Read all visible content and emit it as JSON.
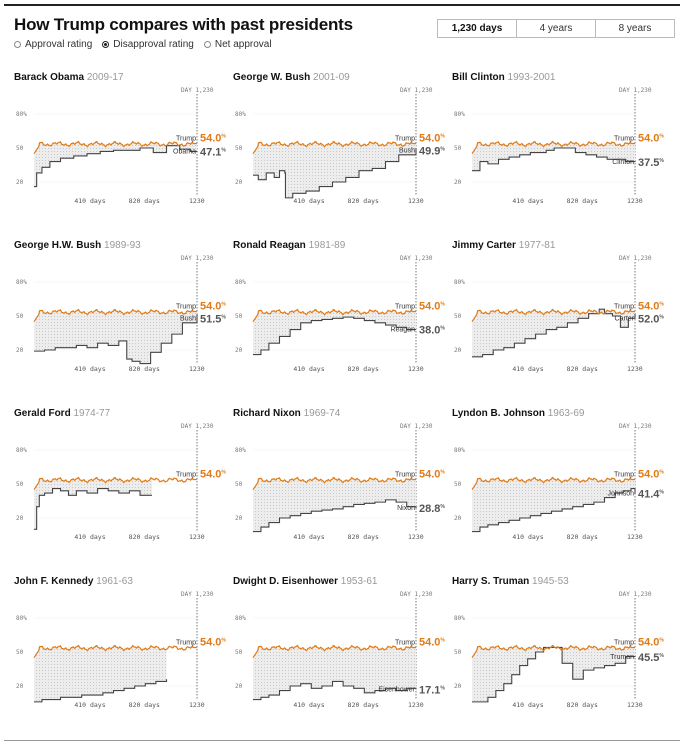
{
  "header": {
    "title": "How Trump compares with past presidents",
    "radio_options": [
      "Approval rating",
      "Disapproval rating",
      "Net approval"
    ],
    "radio_selected": 1,
    "tabs": [
      "1,230 days",
      "4 years",
      "8 years"
    ],
    "tab_active": 0
  },
  "colors": {
    "trump": "#e07b17",
    "president": "#444444",
    "fill": "#e8e8e8"
  },
  "chart_data": {
    "type": "line",
    "title": "How Trump compares with past presidents",
    "metric": "Disapproval rating",
    "x_range": [
      0,
      1230
    ],
    "y_range": [
      10,
      90
    ],
    "x_ticks": [
      410,
      820,
      1230
    ],
    "x_tick_labels": [
      "410",
      "820",
      "1230"
    ],
    "x_unit_label": "days",
    "y_ticks": [
      80,
      50,
      20
    ],
    "y_tick_labels": [
      "80",
      "50",
      "20"
    ],
    "y_top_suffix": "%",
    "marker": {
      "day": 1230,
      "label": "DAY 1,230"
    },
    "trump": {
      "name": "Trump",
      "value": "54.0",
      "unit": "%",
      "final": 54.0
    },
    "presidents": [
      {
        "name": "Barack Obama",
        "years": "2009-17",
        "label": "Obama",
        "value": "47.1",
        "x": [
          0,
          20,
          60,
          120,
          200,
          300,
          400,
          500,
          600,
          700,
          800,
          900,
          1000,
          1100,
          1180,
          1230
        ],
        "y": [
          16,
          28,
          33,
          38,
          41,
          43,
          45,
          47,
          48,
          48,
          50,
          46,
          52,
          49,
          47,
          47.1
        ]
      },
      {
        "name": "George W. Bush",
        "years": "2001-09",
        "label": "Bush",
        "value": "49.9",
        "x": [
          0,
          40,
          100,
          160,
          200,
          240,
          245,
          300,
          400,
          500,
          600,
          700,
          800,
          900,
          1000,
          1100,
          1230
        ],
        "y": [
          26,
          22,
          28,
          24,
          30,
          28,
          6,
          10,
          12,
          16,
          20,
          24,
          30,
          32,
          38,
          44,
          49.9
        ]
      },
      {
        "name": "Bill Clinton",
        "years": "1993-2001",
        "label": "Clinton",
        "value": "37.5",
        "x": [
          0,
          60,
          120,
          200,
          280,
          360,
          440,
          520,
          560,
          620,
          700,
          780,
          860,
          940,
          1020,
          1100,
          1160,
          1230
        ],
        "y": [
          30,
          38,
          36,
          40,
          42,
          44,
          46,
          46,
          48,
          50,
          50,
          46,
          44,
          42,
          40,
          40,
          38,
          37.5
        ]
      },
      {
        "name": "George H.W. Bush",
        "years": "1989-93",
        "label": "Bush",
        "value": "51.5",
        "x": [
          0,
          80,
          160,
          240,
          320,
          400,
          480,
          560,
          640,
          700,
          740,
          800,
          880,
          960,
          1040,
          1120,
          1230
        ],
        "y": [
          19,
          20,
          22,
          22,
          24,
          22,
          26,
          24,
          28,
          12,
          10,
          8,
          18,
          26,
          34,
          44,
          51.5
        ]
      },
      {
        "name": "Ronald Reagan",
        "years": "1981-89",
        "label": "Reagan",
        "value": "38.0",
        "x": [
          0,
          60,
          120,
          200,
          280,
          360,
          440,
          520,
          600,
          680,
          760,
          840,
          920,
          1000,
          1080,
          1160,
          1230
        ],
        "y": [
          16,
          20,
          26,
          32,
          38,
          44,
          46,
          47,
          48,
          49,
          48,
          46,
          44,
          42,
          40,
          38,
          38
        ]
      },
      {
        "name": "Jimmy Carter",
        "years": "1977-81",
        "label": "Carter",
        "value": "52.0",
        "x": [
          0,
          80,
          160,
          240,
          320,
          400,
          480,
          560,
          640,
          720,
          800,
          880,
          960,
          1000,
          1060,
          1120,
          1180,
          1230
        ],
        "y": [
          14,
          16,
          20,
          22,
          26,
          30,
          34,
          38,
          40,
          44,
          48,
          52,
          56,
          52,
          50,
          40,
          48,
          52
        ]
      },
      {
        "name": "Gerald Ford",
        "years": "1974-77",
        "label": "",
        "value": "",
        "x": [
          0,
          20,
          40,
          80,
          140,
          200,
          260,
          320,
          400,
          480,
          560,
          640,
          720,
          800,
          860,
          890
        ],
        "y": [
          10,
          30,
          40,
          42,
          46,
          44,
          40,
          44,
          42,
          46,
          44,
          42,
          44,
          40,
          40,
          40
        ]
      },
      {
        "name": "Richard Nixon",
        "years": "1969-74",
        "label": "Nixon",
        "value": "28.8",
        "x": [
          0,
          60,
          120,
          200,
          280,
          360,
          440,
          520,
          600,
          680,
          760,
          840,
          920,
          1000,
          1080,
          1160,
          1230
        ],
        "y": [
          8,
          12,
          16,
          20,
          22,
          24,
          26,
          27,
          28,
          30,
          32,
          33,
          34,
          36,
          34,
          30,
          28.8
        ]
      },
      {
        "name": "Lyndon B. Johnson",
        "years": "1963-69",
        "label": "Johnson",
        "value": "41.4",
        "x": [
          0,
          60,
          120,
          200,
          280,
          360,
          440,
          520,
          600,
          680,
          760,
          840,
          920,
          1000,
          1080,
          1140,
          1200,
          1230
        ],
        "y": [
          8,
          12,
          14,
          16,
          18,
          20,
          22,
          24,
          26,
          28,
          30,
          32,
          34,
          38,
          42,
          44,
          46,
          41.4
        ]
      },
      {
        "name": "John F. Kennedy",
        "years": "1961-63",
        "label": "",
        "value": "",
        "x": [
          0,
          60,
          120,
          200,
          280,
          360,
          440,
          520,
          600,
          680,
          760,
          840,
          920,
          1000
        ],
        "y": [
          6,
          8,
          8,
          10,
          10,
          12,
          12,
          14,
          16,
          18,
          20,
          22,
          24,
          26
        ]
      },
      {
        "name": "Dwight D. Eisenhower",
        "years": "1953-61",
        "label": "Eisenhower",
        "value": "17.1",
        "x": [
          0,
          60,
          120,
          200,
          280,
          360,
          440,
          520,
          600,
          680,
          760,
          840,
          920,
          1000,
          1080,
          1160,
          1230
        ],
        "y": [
          8,
          10,
          12,
          16,
          20,
          22,
          18,
          20,
          24,
          20,
          18,
          14,
          16,
          18,
          16,
          18,
          17.1
        ]
      },
      {
        "name": "Harry S. Truman",
        "years": "1945-53",
        "label": "Truman",
        "value": "45.5",
        "x": [
          0,
          60,
          120,
          180,
          240,
          300,
          360,
          420,
          480,
          540,
          600,
          680,
          760,
          840,
          920,
          1000,
          1080,
          1160,
          1230
        ],
        "y": [
          6,
          6,
          10,
          16,
          22,
          30,
          38,
          44,
          50,
          54,
          54,
          40,
          26,
          34,
          36,
          38,
          40,
          46,
          45.5
        ]
      }
    ]
  }
}
